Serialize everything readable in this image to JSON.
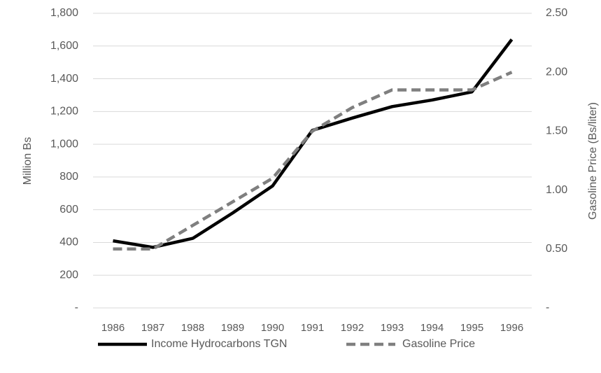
{
  "chart_data": {
    "type": "line",
    "categories": [
      "1986",
      "1987",
      "1988",
      "1989",
      "1990",
      "1991",
      "1992",
      "1993",
      "1994",
      "1995",
      "1996"
    ],
    "ylabel": "Million Bs",
    "y2label": "Gasoline Price (Bs/liter)",
    "ylim": [
      0,
      1800
    ],
    "yticks": [
      {
        "value": 0,
        "label": "-"
      },
      200,
      400,
      600,
      800,
      {
        "value": 1000,
        "label": "1,000"
      },
      {
        "value": 1200,
        "label": "1,200"
      },
      {
        "value": 1400,
        "label": "1,400"
      },
      {
        "value": 1600,
        "label": "1,600"
      },
      {
        "value": 1800,
        "label": "1,800"
      }
    ],
    "y2lim": [
      0,
      2.5
    ],
    "y2ticks": [
      {
        "value": 0,
        "label": "-"
      },
      {
        "value": 0.5,
        "label": "0.50"
      },
      {
        "value": 1,
        "label": "1.00"
      },
      {
        "value": 1.5,
        "label": "1.50"
      },
      {
        "value": 2,
        "label": "2.00"
      },
      {
        "value": 2.5,
        "label": "2.50"
      }
    ],
    "grid": true,
    "legend": "bottom",
    "series": [
      {
        "name": "Income Hydrocarbons TGN",
        "color": "#000000",
        "dash": false,
        "values": [
          410,
          370,
          425,
          580,
          745,
          1085,
          1160,
          1230,
          1270,
          1320,
          1640
        ]
      },
      {
        "name": "Gasoline Price",
        "color": "#7f7f7f",
        "dash": true,
        "axis": "y2",
        "values": [
          0.5,
          0.5,
          0.7,
          0.9,
          1.1,
          1.5,
          1.7,
          1.85,
          1.85,
          1.85,
          2.0
        ]
      }
    ]
  }
}
